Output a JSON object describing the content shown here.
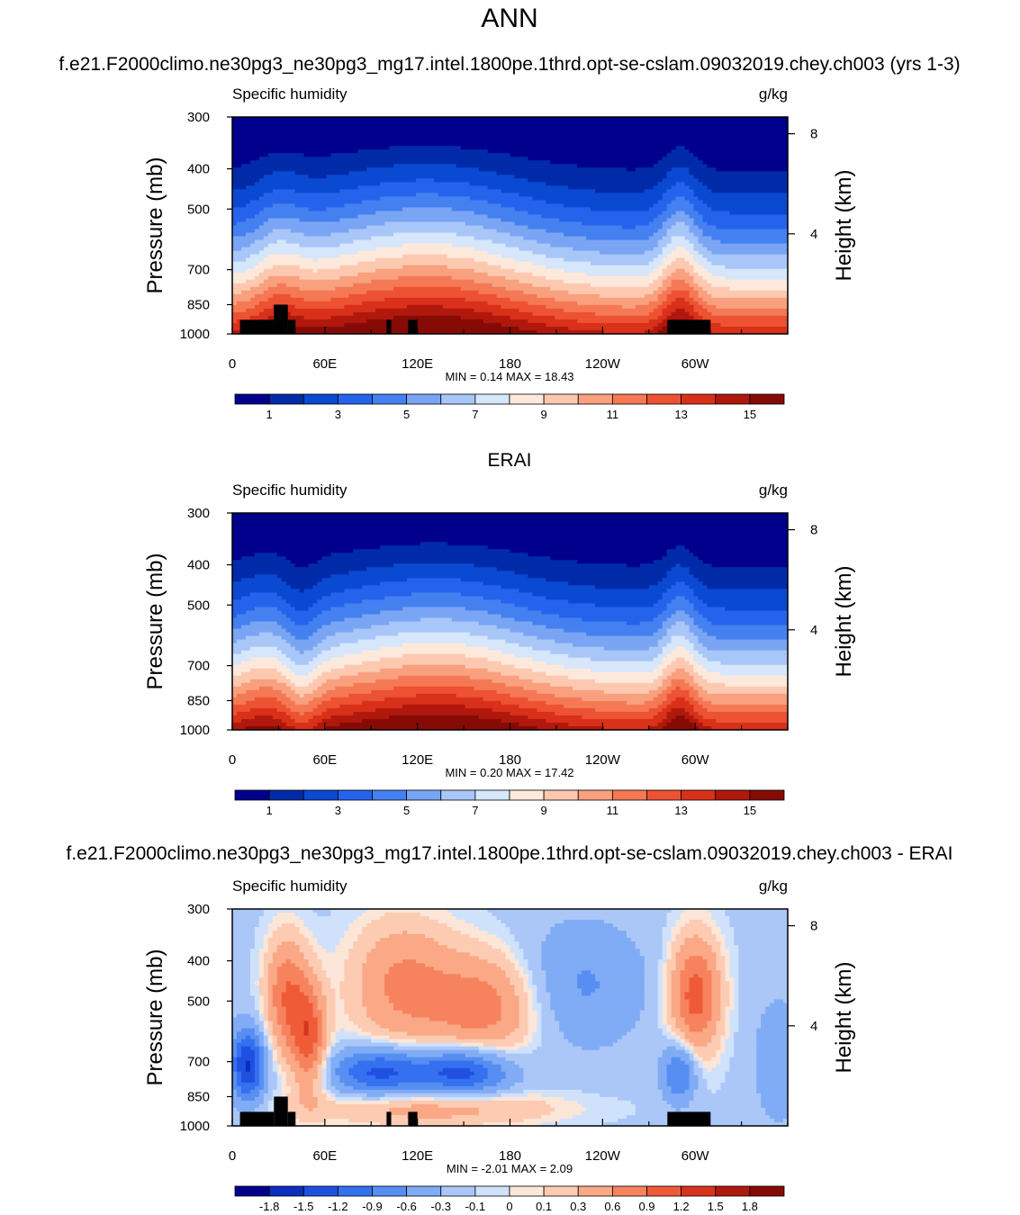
{
  "main_title": "ANN",
  "panel_titles": [
    "f.e21.F2000climo.ne30pg3_ne30pg3_mg17.intel.1800pe.1thrd.opt-se-cslam.09032019.chey.ch003 (yrs 1-3)",
    "ERAI",
    "f.e21.F2000climo.ne30pg3_ne30pg3_mg17.intel.1800pe.1thrd.opt-se-cslam.09032019.chey.ch003 - ERAI"
  ],
  "chart_data": [
    {
      "type": "heatmap",
      "variable_label": "Specific humidity",
      "units_label": "g/kg",
      "ylabel": "Pressure (mb)",
      "y2label": "Height (km)",
      "y_ticks": [
        "300",
        "400",
        "500",
        "700",
        "850",
        "1000"
      ],
      "y_tick_values": [
        300,
        400,
        500,
        700,
        850,
        1000
      ],
      "y2_ticks": [
        "8",
        "4"
      ],
      "y2_tick_values": [
        8,
        4
      ],
      "x_ticks": [
        "0",
        "60E",
        "120E",
        "180",
        "120W",
        "60W"
      ],
      "x_tick_values": [
        0,
        60,
        120,
        180,
        240,
        300
      ],
      "x_range": [
        0,
        360
      ],
      "y_range": [
        1000,
        300
      ],
      "stats": "MIN =   0.14  MAX =  18.43",
      "colorbar_labels": [
        "1",
        "3",
        "5",
        "7",
        "9",
        "11",
        "13",
        "15"
      ],
      "palette": [
        "#00008c",
        "#002ba8",
        "#0a49d2",
        "#2563ec",
        "#4580f0",
        "#79a5f4",
        "#a8c6f8",
        "#d6e6fb",
        "#fde9dc",
        "#fcc9b0",
        "#f9a07f",
        "#f57955",
        "#ed5232",
        "#d9301a",
        "#b0180d",
        "#860a05"
      ],
      "kind": "model"
    },
    {
      "type": "heatmap",
      "variable_label": "Specific humidity",
      "units_label": "g/kg",
      "ylabel": "Pressure (mb)",
      "y2label": "Height (km)",
      "y_ticks": [
        "300",
        "400",
        "500",
        "700",
        "850",
        "1000"
      ],
      "y_tick_values": [
        300,
        400,
        500,
        700,
        850,
        1000
      ],
      "y2_ticks": [
        "8",
        "4"
      ],
      "y2_tick_values": [
        8,
        4
      ],
      "x_ticks": [
        "0",
        "60E",
        "120E",
        "180",
        "120W",
        "60W"
      ],
      "x_tick_values": [
        0,
        60,
        120,
        180,
        240,
        300
      ],
      "x_range": [
        0,
        360
      ],
      "y_range": [
        1000,
        300
      ],
      "stats": "MIN =   0.20  MAX =  17.42",
      "colorbar_labels": [
        "1",
        "3",
        "5",
        "7",
        "9",
        "11",
        "13",
        "15"
      ],
      "palette": [
        "#00008c",
        "#002ba8",
        "#0a49d2",
        "#2563ec",
        "#4580f0",
        "#79a5f4",
        "#a8c6f8",
        "#d6e6fb",
        "#fde9dc",
        "#fcc9b0",
        "#f9a07f",
        "#f57955",
        "#ed5232",
        "#d9301a",
        "#b0180d",
        "#860a05"
      ],
      "kind": "obs"
    },
    {
      "type": "heatmap",
      "variable_label": "Specific humidity",
      "units_label": "g/kg",
      "ylabel": "Pressure (mb)",
      "y2label": "Height (km)",
      "y_ticks": [
        "300",
        "400",
        "500",
        "700",
        "850",
        "1000"
      ],
      "y_tick_values": [
        300,
        400,
        500,
        700,
        850,
        1000
      ],
      "y2_ticks": [
        "8",
        "4"
      ],
      "y2_tick_values": [
        8,
        4
      ],
      "x_ticks": [
        "0",
        "60E",
        "120E",
        "180",
        "120W",
        "60W"
      ],
      "x_tick_values": [
        0,
        60,
        120,
        180,
        240,
        300
      ],
      "x_range": [
        0,
        360
      ],
      "y_range": [
        1000,
        300
      ],
      "stats": "MIN =  -2.01  MAX =   2.09",
      "colorbar_labels": [
        "-1.8",
        "-1.5",
        "-1.2",
        "-0.9",
        "-0.6",
        "-0.3",
        "-0.1",
        "0",
        "0.1",
        "0.3",
        "0.6",
        "0.9",
        "1.2",
        "1.5",
        "1.8"
      ],
      "palette": [
        "#00008c",
        "#0a2ebe",
        "#1f50e0",
        "#3470ef",
        "#568ef2",
        "#80abf5",
        "#aac7f8",
        "#d0e2fb",
        "#fbe6d8",
        "#fccbb2",
        "#faa886",
        "#f6835e",
        "#ee5b36",
        "#d8341c",
        "#b01a0e",
        "#860a05"
      ],
      "kind": "diff"
    }
  ]
}
